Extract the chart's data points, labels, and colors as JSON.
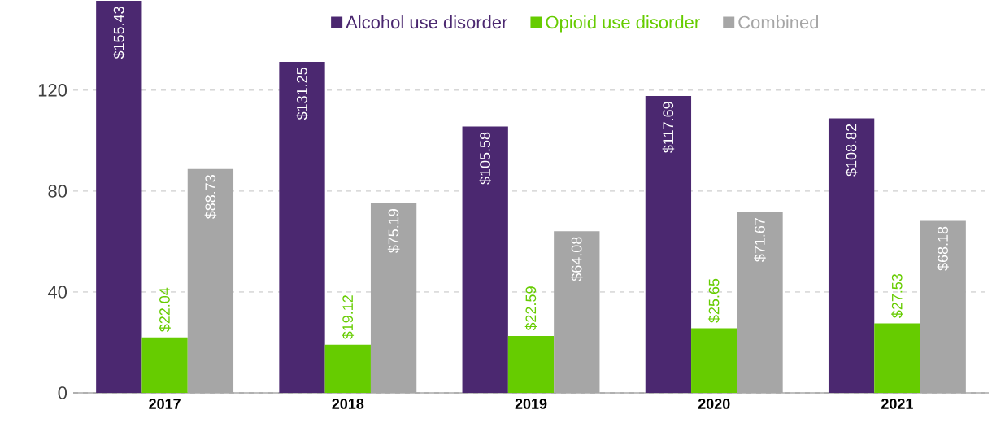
{
  "chart_data": {
    "type": "bar",
    "categories": [
      "2017",
      "2018",
      "2019",
      "2020",
      "2021"
    ],
    "series": [
      {
        "name": "Alcohol use disorder",
        "color": "#4b2870",
        "values": [
          155.43,
          131.25,
          105.58,
          117.69,
          108.82
        ],
        "value_labels": [
          "$155.43",
          "$131.25",
          "$105.58",
          "$117.69",
          "$108.82"
        ]
      },
      {
        "name": "Opioid use disorder",
        "color": "#66cc00",
        "values": [
          22.04,
          19.12,
          22.59,
          25.65,
          27.53
        ],
        "value_labels": [
          "$22.04",
          "$19.12",
          "$22.59",
          "$25.65",
          "$27.53"
        ]
      },
      {
        "name": "Combined",
        "color": "#a6a6a6",
        "values": [
          88.73,
          75.19,
          64.08,
          71.67,
          68.18
        ],
        "value_labels": [
          "$88.73",
          "$75.19",
          "$64.08",
          "$71.67",
          "$68.18"
        ]
      }
    ],
    "ylim": [
      0,
      155.43
    ],
    "yticks": [
      0,
      40,
      80,
      120
    ],
    "grid": "y",
    "legend": "top"
  }
}
